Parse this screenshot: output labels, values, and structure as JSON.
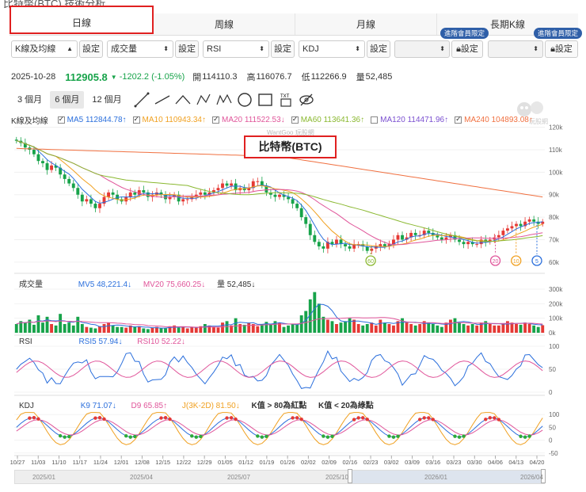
{
  "page_title": "比特幣(BTC) 技術分析",
  "tabs": [
    {
      "label": "日線",
      "active": true
    },
    {
      "label": "周線",
      "active": false
    },
    {
      "label": "月線",
      "active": false
    },
    {
      "label": "長期K線",
      "active": false
    }
  ],
  "controls": {
    "main_select": "K線及均線",
    "vol_select": "成交量",
    "ind1_select": "RSI",
    "ind2_select": "KDJ",
    "set_label": "設定",
    "lock_icon": "lock-icon",
    "badge": "進階會員限定"
  },
  "quote": {
    "date": "2025-10-28",
    "price": "112905.8",
    "change": "-1202.2 (-1.05%)",
    "open_label": "開",
    "open": "114110.3",
    "high_label": "高",
    "high": "116076.7",
    "low_label": "低",
    "low": "112266.9",
    "vol_label": "量",
    "vol": "52,485",
    "up_color": "#e53935",
    "down_color": "#17a34a"
  },
  "periods": [
    "3 個月",
    "6 個月",
    "12 個月"
  ],
  "active_period": "6 個月",
  "tools": [
    "line-tool-icon",
    "ray-tool-icon",
    "triangle-tool-icon",
    "abcd-tool-icon",
    "abcde-tool-icon",
    "circle-tool-icon",
    "rectangle-tool-icon",
    "text-tool-icon",
    "eye-hide-icon"
  ],
  "tool_text": {
    "abcd": "ABCD",
    "abcde": "ABCDE",
    "txt": "TXT"
  },
  "ma_legend": {
    "label": "K線及均線",
    "items": [
      {
        "name": "MA5",
        "value": "112844.78↑",
        "checked": true,
        "color": "#2b6fdc"
      },
      {
        "name": "MA10",
        "value": "110943.34↑",
        "checked": true,
        "color": "#f0a020"
      },
      {
        "name": "MA20",
        "value": "111522.53↓",
        "checked": true,
        "color": "#e0559a"
      },
      {
        "name": "MA60",
        "value": "113641.36↑",
        "checked": true,
        "color": "#8ab830"
      },
      {
        "name": "MA120",
        "value": "114471.96↑",
        "checked": false,
        "color": "#7a4fd0"
      },
      {
        "name": "MA240",
        "value": "104893.08↑",
        "checked": true,
        "color": "#f07040"
      }
    ]
  },
  "chart_title": "比特幣(BTC)",
  "watermark": "WantGoo 玩股網",
  "logo_text": "玩股網",
  "volume_legend": {
    "label": "成交量",
    "ma5": "MV5 48,221.4↓",
    "ma20": "MV20 75,660.25↓",
    "vol": "量 52,485↓"
  },
  "rsi_legend": {
    "label": "RSI",
    "rsi5": "RSI5 57.94↓",
    "rsi10": "RSI10 52.22↓"
  },
  "kdj_legend": {
    "label": "KDJ",
    "k": "K9 71.07↓",
    "d": "D9 65.85↑",
    "j": "J(3K-2D) 81.50↓",
    "note1": "K值 > 80為紅點",
    "note2": "K值 < 20為綠點"
  },
  "chart_data": [
    {
      "type": "candlestick",
      "title": "比特幣(BTC)",
      "y_ticks": [
        "120k",
        "110k",
        "100k",
        "90k",
        "80k",
        "70k",
        "60k"
      ],
      "ylim": [
        55000,
        122000
      ],
      "x_ticks": [
        "10/27",
        "11/03",
        "11/10",
        "11/17",
        "11/24",
        "12/01",
        "12/08",
        "12/15",
        "12/22",
        "12/29",
        "01/05",
        "01/12",
        "01/19",
        "01/26",
        "02/02",
        "02/09",
        "02/16",
        "02/23",
        "03/02",
        "03/09",
        "03/16",
        "03/23",
        "03/30",
        "04/06",
        "04/13",
        "04/20"
      ],
      "close": [
        114000,
        113000,
        111000,
        110000,
        108000,
        105000,
        104000,
        101000,
        103000,
        102000,
        99000,
        97000,
        95000,
        93000,
        90000,
        87000,
        88000,
        86000,
        84000,
        86000,
        89000,
        91000,
        90000,
        88000,
        87000,
        89000,
        91000,
        90000,
        92000,
        91000,
        89000,
        90000,
        91000,
        90000,
        88000,
        89000,
        90000,
        87000,
        88000,
        88000,
        89000,
        90000,
        91000,
        90000,
        91000,
        92000,
        93000,
        95000,
        94000,
        95000,
        92000,
        93000,
        92000,
        93000,
        96000,
        96000,
        94000,
        91000,
        90000,
        89000,
        90000,
        89000,
        88000,
        86000,
        84000,
        80000,
        77000,
        72000,
        69000,
        67000,
        66000,
        69000,
        68000,
        70000,
        68000,
        67000,
        66000,
        68000,
        68000,
        67000,
        65000,
        66000,
        67000,
        68000,
        67000,
        68000,
        70000,
        72000,
        70000,
        71000,
        73000,
        72000,
        72000,
        74000,
        73000,
        72000,
        71000,
        70000,
        71000,
        72000,
        70000,
        69000,
        68000,
        69000,
        68000,
        68000,
        70000,
        69000,
        70000,
        71000,
        72000,
        74000,
        75000,
        76000,
        77000,
        76000,
        78000,
        79000,
        78000,
        77000,
        78000
      ],
      "ma_series": [
        "MA5",
        "MA10",
        "MA20",
        "MA60",
        "MA240"
      ],
      "markers": [
        {
          "label": "60",
          "at": "02/23"
        },
        {
          "label": "20",
          "at": "04/06"
        },
        {
          "label": "10",
          "at": "04/13"
        },
        {
          "label": "5",
          "at": "04/20"
        }
      ]
    },
    {
      "type": "bar",
      "title": "成交量",
      "y_ticks": [
        "300k",
        "200k",
        "100k",
        "0k"
      ],
      "ylim": [
        0,
        300000
      ],
      "values": [
        60,
        80,
        70,
        90,
        55,
        120,
        70,
        110,
        60,
        50,
        130,
        60,
        70,
        50,
        110,
        60,
        40,
        35,
        30,
        45,
        60,
        70,
        50,
        40,
        40,
        35,
        50,
        40,
        45,
        30,
        25,
        35,
        40,
        30,
        30,
        45,
        50,
        35,
        40,
        30,
        40,
        35,
        45,
        60,
        50,
        40,
        35,
        70,
        80,
        50,
        100,
        60,
        55,
        70,
        60,
        45,
        60,
        75,
        60,
        80,
        70,
        40,
        50,
        60,
        55,
        120,
        150,
        230,
        280,
        200,
        110,
        90,
        80,
        60,
        70,
        80,
        100,
        90,
        60,
        50,
        60,
        70,
        50,
        90,
        70,
        60,
        50,
        80,
        100,
        70,
        60,
        50,
        60,
        80,
        70,
        60,
        50,
        40,
        70,
        90,
        100,
        70,
        60,
        50,
        60,
        50,
        70,
        80,
        60,
        50,
        50,
        60,
        80,
        70,
        60,
        55,
        70,
        60,
        50,
        40,
        52
      ]
    },
    {
      "type": "line",
      "title": "RSI",
      "y_ticks": [
        "100",
        "50",
        "0"
      ],
      "ylim": [
        0,
        100
      ],
      "series": [
        {
          "name": "RSI5"
        },
        {
          "name": "RSI10"
        }
      ]
    },
    {
      "type": "line",
      "title": "KDJ",
      "y_ticks": [
        "100",
        "50",
        "0",
        "-50"
      ],
      "ylim": [
        -60,
        110
      ],
      "series": [
        {
          "name": "K9"
        },
        {
          "name": "D9"
        },
        {
          "name": "J(3K-2D)"
        }
      ]
    }
  ],
  "navigator": {
    "labels": [
      "2025/01",
      "2025/04",
      "2025/07",
      "2025/10",
      "2026/01",
      "2026/04"
    ]
  }
}
